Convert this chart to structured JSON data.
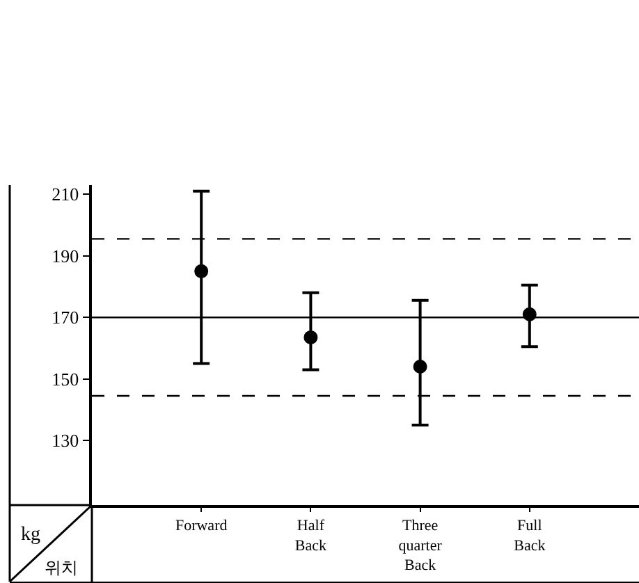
{
  "chart_data": {
    "type": "scatter",
    "xlabel": "위치",
    "ylabel": "kg",
    "categories": [
      "Forward",
      "Half Back",
      "Three quarter Back",
      "Full Back"
    ],
    "values": [
      185,
      163.5,
      154,
      171
    ],
    "errors": [
      [
        155,
        211
      ],
      [
        153,
        178
      ],
      [
        135,
        175.5
      ],
      [
        160.5,
        180.5
      ]
    ],
    "color": "#000000",
    "marker": "circle",
    "ylim": [
      109,
      213
    ],
    "yticks": [
      130,
      150,
      170,
      190,
      210
    ],
    "grid": false,
    "ref_lines": [
      {
        "axis": "y",
        "value": 170,
        "line_style": "solid",
        "color": "#000000"
      },
      {
        "axis": "y",
        "value": 195.5,
        "line_style": "dashed",
        "color": "#000000"
      },
      {
        "axis": "y",
        "value": 144.5,
        "line_style": "dashed",
        "color": "#000000"
      }
    ]
  }
}
